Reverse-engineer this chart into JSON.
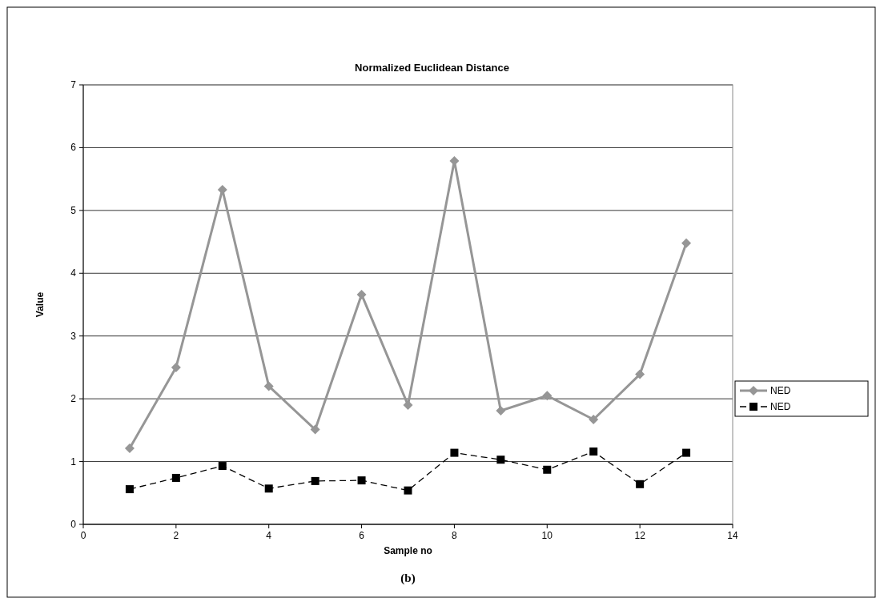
{
  "chart_data": {
    "type": "line",
    "title": "Normalized Euclidean Distance",
    "xlabel": "Sample no",
    "ylabel": "Value",
    "x": [
      1,
      2,
      3,
      4,
      5,
      6,
      7,
      8,
      9,
      10,
      11,
      12,
      13
    ],
    "series": [
      {
        "name": "NED",
        "color": "#969696",
        "marker": "diamond",
        "line_style": "solid",
        "values": [
          1.21,
          2.5,
          5.33,
          2.2,
          1.51,
          3.66,
          1.9,
          5.79,
          1.81,
          2.05,
          1.67,
          2.39,
          4.48
        ]
      },
      {
        "name": "NED",
        "color": "#000000",
        "marker": "square",
        "line_style": "dashed",
        "values": [
          0.56,
          0.74,
          0.93,
          0.57,
          0.69,
          0.7,
          0.54,
          1.14,
          1.03,
          0.87,
          1.16,
          0.64,
          1.14
        ]
      }
    ],
    "xlim": [
      0,
      14
    ],
    "xticks": [
      0,
      2,
      4,
      6,
      8,
      10,
      12,
      14
    ],
    "ylim": [
      0,
      7
    ],
    "yticks": [
      0,
      1,
      2,
      3,
      4,
      5,
      6,
      7
    ],
    "grid": "y",
    "legend": "right",
    "annotations": [
      "(b)"
    ]
  }
}
